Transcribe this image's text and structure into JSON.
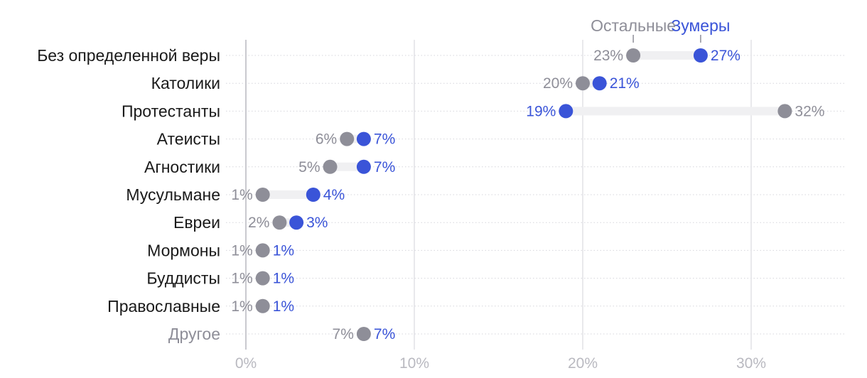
{
  "chart_data": {
    "type": "dumbbell",
    "title": "",
    "xlabel": "",
    "ylabel": "",
    "xlim": [
      0,
      35
    ],
    "x_ticks": [
      0,
      10,
      20,
      30
    ],
    "x_tick_labels": [
      "0%",
      "10%",
      "20%",
      "30%"
    ],
    "grid": true,
    "legend_placement": "top-right",
    "categories": [
      "Без определенной веры",
      "Католики",
      "Протестанты",
      "Атеисты",
      "Агностики",
      "Мусульмане",
      "Евреи",
      "Мормоны",
      "Буддисты",
      "Православные",
      "Другое"
    ],
    "series": [
      {
        "name": "Остальные",
        "color": "#8e8e98",
        "values": [
          23,
          20,
          32,
          6,
          5,
          1,
          2,
          1,
          1,
          1,
          7
        ],
        "labels": [
          "23%",
          "20%",
          "32%",
          "6%",
          "5%",
          "1%",
          "2%",
          "1%",
          "1%",
          "1%",
          "7%"
        ]
      },
      {
        "name": "Зумеры",
        "color": "#3a54d8",
        "values": [
          27,
          21,
          19,
          7,
          7,
          4,
          3,
          1,
          1,
          1,
          7
        ],
        "labels": [
          "27%",
          "21%",
          "19%",
          "7%",
          "7%",
          "4%",
          "3%",
          "1%",
          "1%",
          "1%",
          "7%"
        ]
      }
    ]
  }
}
